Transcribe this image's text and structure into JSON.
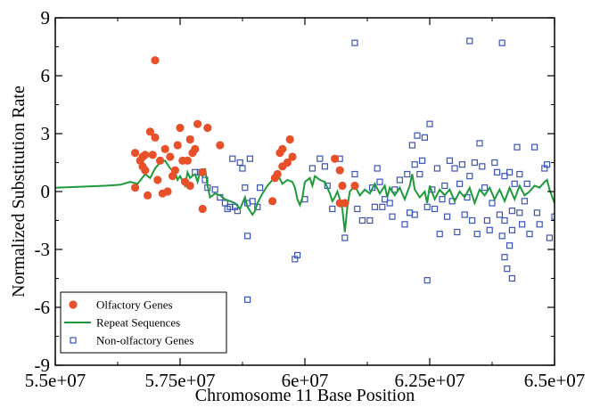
{
  "chart_data": {
    "type": "scatter",
    "title": "",
    "xlabel": "Chromosome 11 Base Position",
    "ylabel": "Normalized Substitution Rate",
    "xlim": [
      55000000,
      65000000
    ],
    "ylim": [
      -9,
      9
    ],
    "x_ticks": [
      55000000,
      57500000,
      60000000,
      62500000,
      65000000
    ],
    "x_tick_labels": [
      "5.5e+07",
      "5.75e+07",
      "6e+07",
      "6.25e+07",
      "6.5e+07"
    ],
    "y_ticks": [
      -9,
      -6,
      -3,
      0,
      3,
      6,
      9
    ],
    "y_tick_labels": [
      "-9",
      "-6",
      "-3",
      "0",
      "3",
      "6",
      "9"
    ],
    "grid": false,
    "legend_position": "bottom-left",
    "colors": {
      "olfactory": "#e8502a",
      "repeat": "#1e9a3a",
      "nonolfactory": "#3a55b8"
    },
    "legend": [
      "Olfactory Genes",
      "Repeat Sequences",
      "Non-olfactory Genes"
    ],
    "series": [
      {
        "name": "Olfactory Genes",
        "kind": "scatter-circle",
        "points": [
          [
            56600000,
            0.2
          ],
          [
            56600000,
            2.0
          ],
          [
            56700000,
            1.6
          ],
          [
            56750000,
            1.8
          ],
          [
            56800000,
            1.9
          ],
          [
            56750000,
            1.3
          ],
          [
            56800000,
            1.1
          ],
          [
            56850000,
            -0.2
          ],
          [
            56900000,
            3.1
          ],
          [
            56950000,
            1.9
          ],
          [
            57000000,
            2.8
          ],
          [
            57050000,
            0.6
          ],
          [
            57100000,
            1.6
          ],
          [
            57150000,
            -0.1
          ],
          [
            57200000,
            2.2
          ],
          [
            57250000,
            0.0
          ],
          [
            57300000,
            1.8
          ],
          [
            57350000,
            0.8
          ],
          [
            57400000,
            1.1
          ],
          [
            57450000,
            2.4
          ],
          [
            57500000,
            3.3
          ],
          [
            57550000,
            1.6
          ],
          [
            57600000,
            0.5
          ],
          [
            57650000,
            1.6
          ],
          [
            57700000,
            0.3
          ],
          [
            57700000,
            2.7
          ],
          [
            57750000,
            2.0
          ],
          [
            57800000,
            2.2
          ],
          [
            57850000,
            3.5
          ],
          [
            57950000,
            1.0
          ],
          [
            57950000,
            -0.9
          ],
          [
            58050000,
            3.3
          ],
          [
            58300000,
            2.4
          ],
          [
            57000000,
            6.8
          ],
          [
            59350000,
            -0.5
          ],
          [
            59400000,
            0.7
          ],
          [
            59450000,
            0.9
          ],
          [
            59500000,
            2.0
          ],
          [
            59550000,
            2.2
          ],
          [
            59550000,
            1.3
          ],
          [
            59650000,
            1.5
          ],
          [
            59700000,
            2.7
          ],
          [
            59750000,
            1.8
          ],
          [
            60600000,
            1.7
          ],
          [
            60700000,
            1.1
          ],
          [
            60700000,
            -0.6
          ],
          [
            60750000,
            0.3
          ],
          [
            60800000,
            -0.6
          ],
          [
            61000000,
            0.3
          ]
        ]
      },
      {
        "name": "Repeat Sequences",
        "kind": "line",
        "points": [
          [
            55000000,
            0.2
          ],
          [
            55500000,
            0.25
          ],
          [
            56000000,
            0.3
          ],
          [
            56300000,
            0.35
          ],
          [
            56500000,
            0.5
          ],
          [
            56650000,
            0.4
          ],
          [
            56800000,
            0.9
          ],
          [
            56900000,
            0.7
          ],
          [
            57000000,
            1.2
          ],
          [
            57100000,
            1.5
          ],
          [
            57200000,
            1.6
          ],
          [
            57300000,
            1.2
          ],
          [
            57400000,
            1.0
          ],
          [
            57450000,
            0.6
          ],
          [
            57500000,
            0.8
          ],
          [
            57600000,
            0.3
          ],
          [
            57650000,
            1.0
          ],
          [
            57700000,
            0.7
          ],
          [
            57800000,
            0.9
          ],
          [
            57850000,
            0.5
          ],
          [
            57900000,
            1.0
          ],
          [
            57950000,
            0.8
          ],
          [
            58000000,
            1.2
          ],
          [
            58050000,
            0.3
          ],
          [
            58100000,
            -0.3
          ],
          [
            58200000,
            -0.1
          ],
          [
            58300000,
            -0.2
          ],
          [
            58400000,
            -0.4
          ],
          [
            58500000,
            -0.5
          ],
          [
            58600000,
            -0.6
          ],
          [
            58700000,
            -0.9
          ],
          [
            58750000,
            -0.6
          ],
          [
            58800000,
            -0.3
          ],
          [
            58850000,
            -0.8
          ],
          [
            58900000,
            -1.0
          ],
          [
            58950000,
            -1.2
          ],
          [
            59000000,
            -1.0
          ],
          [
            59050000,
            -0.6
          ],
          [
            59150000,
            -0.1
          ],
          [
            59250000,
            0.3
          ],
          [
            59350000,
            0.6
          ],
          [
            59450000,
            0.9
          ],
          [
            59550000,
            0.4
          ],
          [
            59650000,
            0.6
          ],
          [
            59750000,
            0.5
          ],
          [
            59800000,
            0.2
          ],
          [
            59850000,
            -0.4
          ],
          [
            59900000,
            -0.7
          ],
          [
            59950000,
            -0.3
          ],
          [
            60000000,
            0.5
          ],
          [
            60100000,
            0.7
          ],
          [
            60150000,
            0.3
          ],
          [
            60200000,
            0.8
          ],
          [
            60300000,
            0.6
          ],
          [
            60400000,
            0.5
          ],
          [
            60450000,
            0.2
          ],
          [
            60500000,
            -0.1
          ],
          [
            60550000,
            -0.5
          ],
          [
            60600000,
            -0.3
          ],
          [
            60650000,
            0.0
          ],
          [
            60700000,
            -0.4
          ],
          [
            60750000,
            -0.9
          ],
          [
            60800000,
            -2.1
          ],
          [
            60850000,
            -0.8
          ],
          [
            60900000,
            0.0
          ],
          [
            61000000,
            0.3
          ],
          [
            61100000,
            -0.2
          ],
          [
            61200000,
            0.1
          ],
          [
            61300000,
            -0.1
          ],
          [
            61400000,
            0.4
          ],
          [
            61500000,
            -0.1
          ],
          [
            61600000,
            0.3
          ],
          [
            61650000,
            -0.3
          ],
          [
            61700000,
            0.2
          ],
          [
            61800000,
            -0.2
          ],
          [
            61900000,
            0.2
          ],
          [
            62000000,
            -0.4
          ],
          [
            62100000,
            0.3
          ],
          [
            62150000,
            0.9
          ],
          [
            62200000,
            0.1
          ],
          [
            62300000,
            -0.3
          ],
          [
            62400000,
            0.0
          ],
          [
            62450000,
            -0.6
          ],
          [
            62500000,
            0.3
          ],
          [
            62600000,
            -0.4
          ],
          [
            62700000,
            0.1
          ],
          [
            62800000,
            -0.2
          ],
          [
            62900000,
            0.1
          ],
          [
            63000000,
            -0.5
          ],
          [
            63100000,
            0.0
          ],
          [
            63200000,
            -0.3
          ],
          [
            63300000,
            0.2
          ],
          [
            63400000,
            -0.6
          ],
          [
            63500000,
            0.1
          ],
          [
            63600000,
            -0.2
          ],
          [
            63700000,
            0.2
          ],
          [
            63800000,
            -0.4
          ],
          [
            63900000,
            0.1
          ],
          [
            64000000,
            -0.5
          ],
          [
            64100000,
            0.2
          ],
          [
            64200000,
            -0.4
          ],
          [
            64300000,
            0.3
          ],
          [
            64400000,
            -0.2
          ],
          [
            64500000,
            0.0
          ],
          [
            64600000,
            0.3
          ],
          [
            64700000,
            0.2
          ],
          [
            64800000,
            0.5
          ],
          [
            64850000,
            0.6
          ],
          [
            64900000,
            0.1
          ],
          [
            65000000,
            -0.6
          ]
        ]
      },
      {
        "name": "Non-olfactory Genes",
        "kind": "scatter-square",
        "points": [
          [
            57700000,
            2.7
          ],
          [
            57800000,
            1.0
          ],
          [
            57900000,
            1.0
          ],
          [
            58000000,
            0.6
          ],
          [
            58050000,
            0.2
          ],
          [
            58200000,
            0.1
          ],
          [
            58300000,
            -0.3
          ],
          [
            58400000,
            -0.6
          ],
          [
            58450000,
            -0.9
          ],
          [
            58500000,
            -0.8
          ],
          [
            58550000,
            1.7
          ],
          [
            58600000,
            -0.8
          ],
          [
            58650000,
            -1.0
          ],
          [
            58700000,
            1.5
          ],
          [
            58750000,
            1.2
          ],
          [
            58800000,
            0.2
          ],
          [
            58850000,
            -0.6
          ],
          [
            58850000,
            -2.3
          ],
          [
            58900000,
            1.7
          ],
          [
            58950000,
            -0.5
          ],
          [
            59050000,
            -0.8
          ],
          [
            59100000,
            0.2
          ],
          [
            58850000,
            -5.6
          ],
          [
            59800000,
            -3.5
          ],
          [
            59850000,
            -3.3
          ],
          [
            60000000,
            -0.4
          ],
          [
            60150000,
            1.2
          ],
          [
            60300000,
            1.7
          ],
          [
            60400000,
            1.3
          ],
          [
            60450000,
            0.3
          ],
          [
            60550000,
            -0.9
          ],
          [
            60700000,
            1.7
          ],
          [
            60800000,
            -2.4
          ],
          [
            61000000,
            0.9
          ],
          [
            61050000,
            -0.9
          ],
          [
            61150000,
            -1.5
          ],
          [
            61300000,
            -1.5
          ],
          [
            61350000,
            0.2
          ],
          [
            61400000,
            -0.8
          ],
          [
            61450000,
            1.2
          ],
          [
            61500000,
            0.5
          ],
          [
            61550000,
            -0.8
          ],
          [
            61600000,
            -0.4
          ],
          [
            61700000,
            -0.6
          ],
          [
            61750000,
            -1.3
          ],
          [
            61800000,
            0.1
          ],
          [
            61900000,
            0.6
          ],
          [
            62000000,
            -1.7
          ],
          [
            62050000,
            0.9
          ],
          [
            62100000,
            -1.1
          ],
          [
            62150000,
            2.4
          ],
          [
            62200000,
            1.4
          ],
          [
            62200000,
            -1.2
          ],
          [
            62250000,
            2.9
          ],
          [
            62300000,
            0.9
          ],
          [
            62350000,
            1.6
          ],
          [
            62400000,
            2.8
          ],
          [
            62450000,
            -0.8
          ],
          [
            62500000,
            3.5
          ],
          [
            62550000,
            0.1
          ],
          [
            62600000,
            -0.9
          ],
          [
            62650000,
            1.2
          ],
          [
            62700000,
            -2.2
          ],
          [
            62750000,
            -0.4
          ],
          [
            62800000,
            0.3
          ],
          [
            62850000,
            -1.3
          ],
          [
            62900000,
            1.6
          ],
          [
            62950000,
            -0.5
          ],
          [
            63000000,
            1.2
          ],
          [
            63050000,
            -2.1
          ],
          [
            63100000,
            0.4
          ],
          [
            63150000,
            1.4
          ],
          [
            63200000,
            -1.2
          ],
          [
            63250000,
            -0.3
          ],
          [
            63300000,
            0.8
          ],
          [
            63350000,
            -1.5
          ],
          [
            63400000,
            1.5
          ],
          [
            63450000,
            -2.2
          ],
          [
            63500000,
            2.5
          ],
          [
            63550000,
            1.3
          ],
          [
            63600000,
            0.2
          ],
          [
            63650000,
            -1.5
          ],
          [
            63700000,
            -2.0
          ],
          [
            63750000,
            -0.6
          ],
          [
            63800000,
            1.5
          ],
          [
            63850000,
            1.0
          ],
          [
            63900000,
            -1.2
          ],
          [
            63950000,
            -2.3
          ],
          [
            64000000,
            -3.4
          ],
          [
            64050000,
            -4.0
          ],
          [
            64100000,
            -2.8
          ],
          [
            64150000,
            -1.0
          ],
          [
            64200000,
            0.4
          ],
          [
            64250000,
            2.3
          ],
          [
            64300000,
            0.9
          ],
          [
            64350000,
            -1.7
          ],
          [
            64400000,
            -0.5
          ],
          [
            64450000,
            0.4
          ],
          [
            64500000,
            -2.2
          ],
          [
            64600000,
            2.3
          ],
          [
            64650000,
            -1.1
          ],
          [
            64700000,
            -1.7
          ],
          [
            64800000,
            1.2
          ],
          [
            64850000,
            1.4
          ],
          [
            64900000,
            -2.4
          ],
          [
            65000000,
            -1.3
          ],
          [
            61000000,
            7.7
          ],
          [
            63300000,
            7.8
          ],
          [
            63950000,
            7.7
          ],
          [
            64150000,
            -4.5
          ],
          [
            64100000,
            1.0
          ],
          [
            64000000,
            0.8
          ],
          [
            62450000,
            -4.6
          ],
          [
            64150000,
            -2.0
          ],
          [
            64300000,
            -1.1
          ],
          [
            64000000,
            -1.5
          ]
        ]
      }
    ]
  }
}
